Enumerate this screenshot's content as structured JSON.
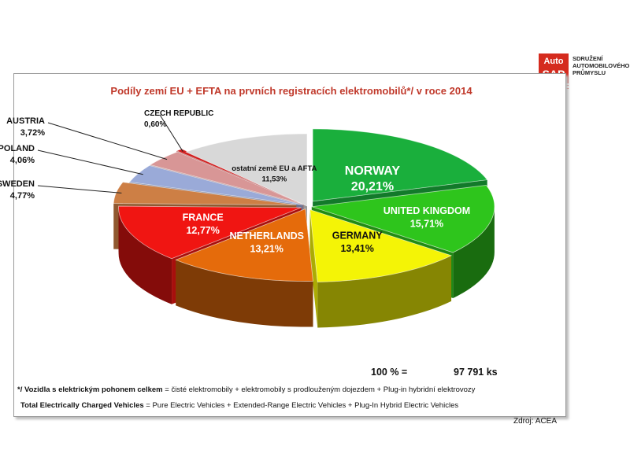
{
  "logo": {
    "mark_top": "Auto",
    "mark_bottom": "SAP",
    "org_lines": [
      "SDRUŽENÍ",
      "AUTOMOBILOVÉHO",
      "PRŮMYSLU"
    ]
  },
  "chart_data": {
    "type": "pie",
    "title": "Podíly zemí EU + EFTA na prvních registracích elektromobilů*/ v roce 2014",
    "slices": [
      {
        "label": "NORWAY",
        "value": 20.21,
        "value_label": "20,21%",
        "color": "#1aaf3c"
      },
      {
        "label": "UNITED KINGDOM",
        "value": 15.71,
        "value_label": "15,71%",
        "color": "#2ec51c"
      },
      {
        "label": "GERMANY",
        "value": 13.41,
        "value_label": "13,41%",
        "color": "#f4f406"
      },
      {
        "label": "NETHERLANDS",
        "value": 13.21,
        "value_label": "13,21%",
        "color": "#e56b0b"
      },
      {
        "label": "FRANCE",
        "value": 12.77,
        "value_label": "12,77%",
        "color": "#f01512"
      },
      {
        "label": "SWEDEN",
        "value": 4.77,
        "value_label": "4,77%",
        "color": "#cd7f45"
      },
      {
        "label": "POLAND",
        "value": 4.06,
        "value_label": "4,06%",
        "color": "#9aaad8"
      },
      {
        "label": "AUSTRIA",
        "value": 3.72,
        "value_label": "3,72%",
        "color": "#d89696"
      },
      {
        "label": "CZECH REPUBLIC",
        "value": 0.6,
        "value_label": "0,60%",
        "color": "#d01f1f"
      },
      {
        "label": "ostatní země EU a AFTA",
        "value": 11.53,
        "value_label": "11,53%",
        "color": "#d8d8d8"
      }
    ],
    "legend": "none"
  },
  "total": {
    "percent_label": "100 % =",
    "count_label": "97 791 ks"
  },
  "notes": {
    "cz_bold": "*/ Vozidla s elektrickým pohonem celkem",
    "cz_rest": " = čisté elektromobily + elektromobily s prodlouženým dojezdem + Plug-in hybridní elektrovozy",
    "en_bold": "Total Electrically Charged Vehicles",
    "en_rest": " = Pure Electric Vehicles + Extended-Range Electric Vehicles + Plug-In Hybrid Electric Vehicles"
  },
  "source": "Zdroj: ACEA"
}
